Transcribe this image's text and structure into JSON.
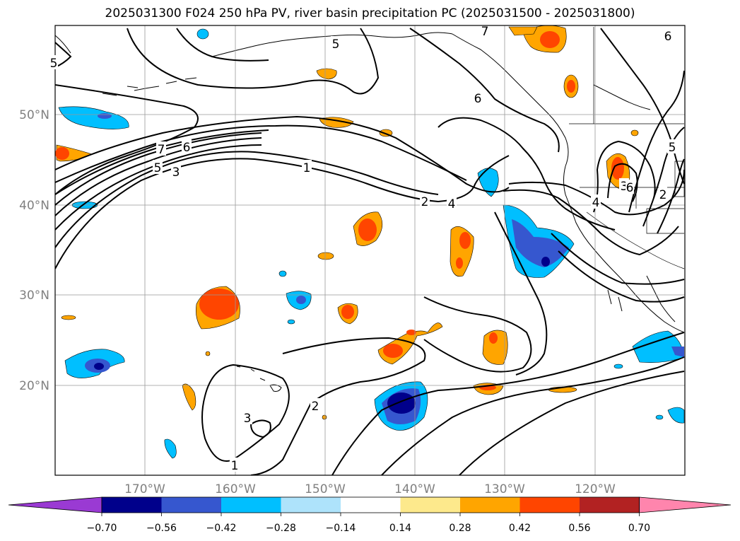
{
  "title": "2025031300 F024 250 hPa PV, river basin precipitation PC (2025031500 - 2025031800)",
  "lat_labels": [
    "50°N",
    "40°N",
    "30°N",
    "20°N"
  ],
  "lon_labels": [
    "170°W",
    "160°W",
    "150°W",
    "140°W",
    "130°W",
    "120°W"
  ],
  "colorbar": {
    "ticks": [
      "−0.70",
      "−0.56",
      "−0.42",
      "−0.28",
      "−0.14",
      "0.14",
      "0.28",
      "0.42",
      "0.56",
      "0.70"
    ],
    "colors": [
      "#9a3ad3",
      "#00008b",
      "#3657cf",
      "#00bfff",
      "#aee3fb",
      "#ffffff",
      "#fde98c",
      "#ffa500",
      "#ff4500",
      "#b22222",
      "#ff85ad"
    ]
  },
  "pv_contour_labels": [
    "1",
    "2",
    "3",
    "4",
    "5",
    "6",
    "7",
    "5",
    "3",
    "1",
    "2",
    "5",
    "6",
    "7",
    "4",
    "3",
    "5",
    "2",
    "6",
    "6"
  ]
}
